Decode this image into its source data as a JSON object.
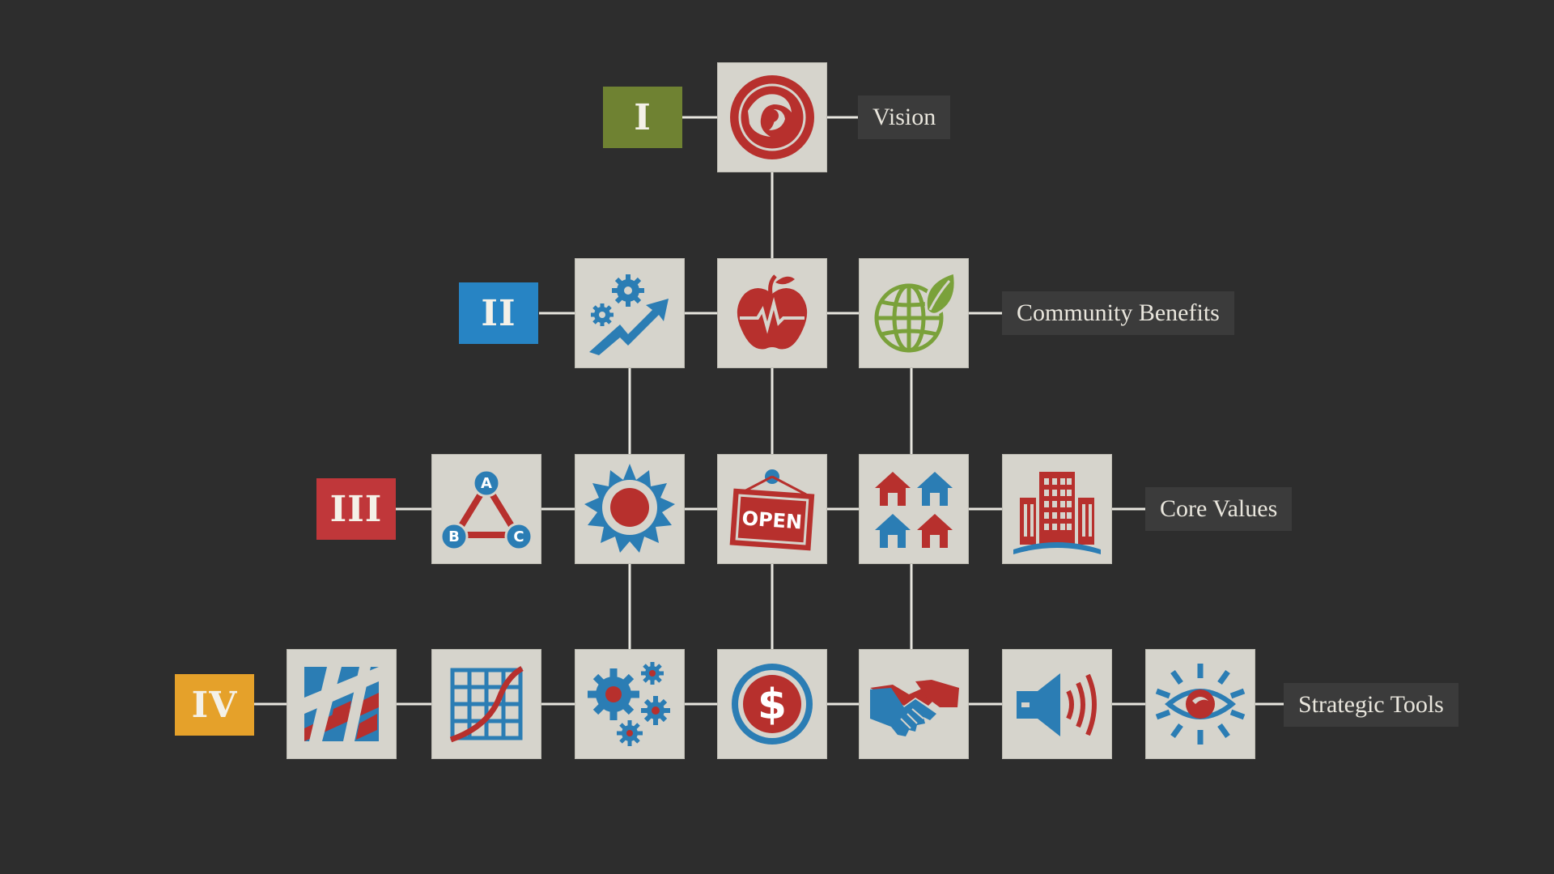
{
  "colors": {
    "background": "#2d2d2d",
    "tile": "#d6d4cc",
    "red": "#b7302d",
    "blue": "#2b7db4",
    "green": "#7aa13a",
    "line": "#e8e6df"
  },
  "levels": [
    {
      "numeral": "I",
      "name": "Vision",
      "color": "#6f8232"
    },
    {
      "numeral": "II",
      "name": "Community Benefits",
      "color": "#2784c4"
    },
    {
      "numeral": "III",
      "name": "Core Values",
      "color": "#c0373a"
    },
    {
      "numeral": "IV",
      "name": "Strategic Tools",
      "color": "#e5a12a"
    }
  ],
  "icons": {
    "row1": [
      "phoenix-logo-icon"
    ],
    "row2": [
      "gears-growth-arrow-icon",
      "apple-heartbeat-icon",
      "green-globe-leaf-icon"
    ],
    "row3": [
      "abc-triangle-icon",
      "sun-gear-icon",
      "open-sign-icon",
      "houses-icon",
      "city-building-icon"
    ],
    "row4": [
      "street-map-icon",
      "grid-chart-icon",
      "gears-cluster-icon",
      "dollar-coin-icon",
      "handshake-icon",
      "megaphone-speaker-icon",
      "eye-icon"
    ]
  },
  "sign_text": "OPEN",
  "abc": [
    "A",
    "B",
    "C"
  ]
}
